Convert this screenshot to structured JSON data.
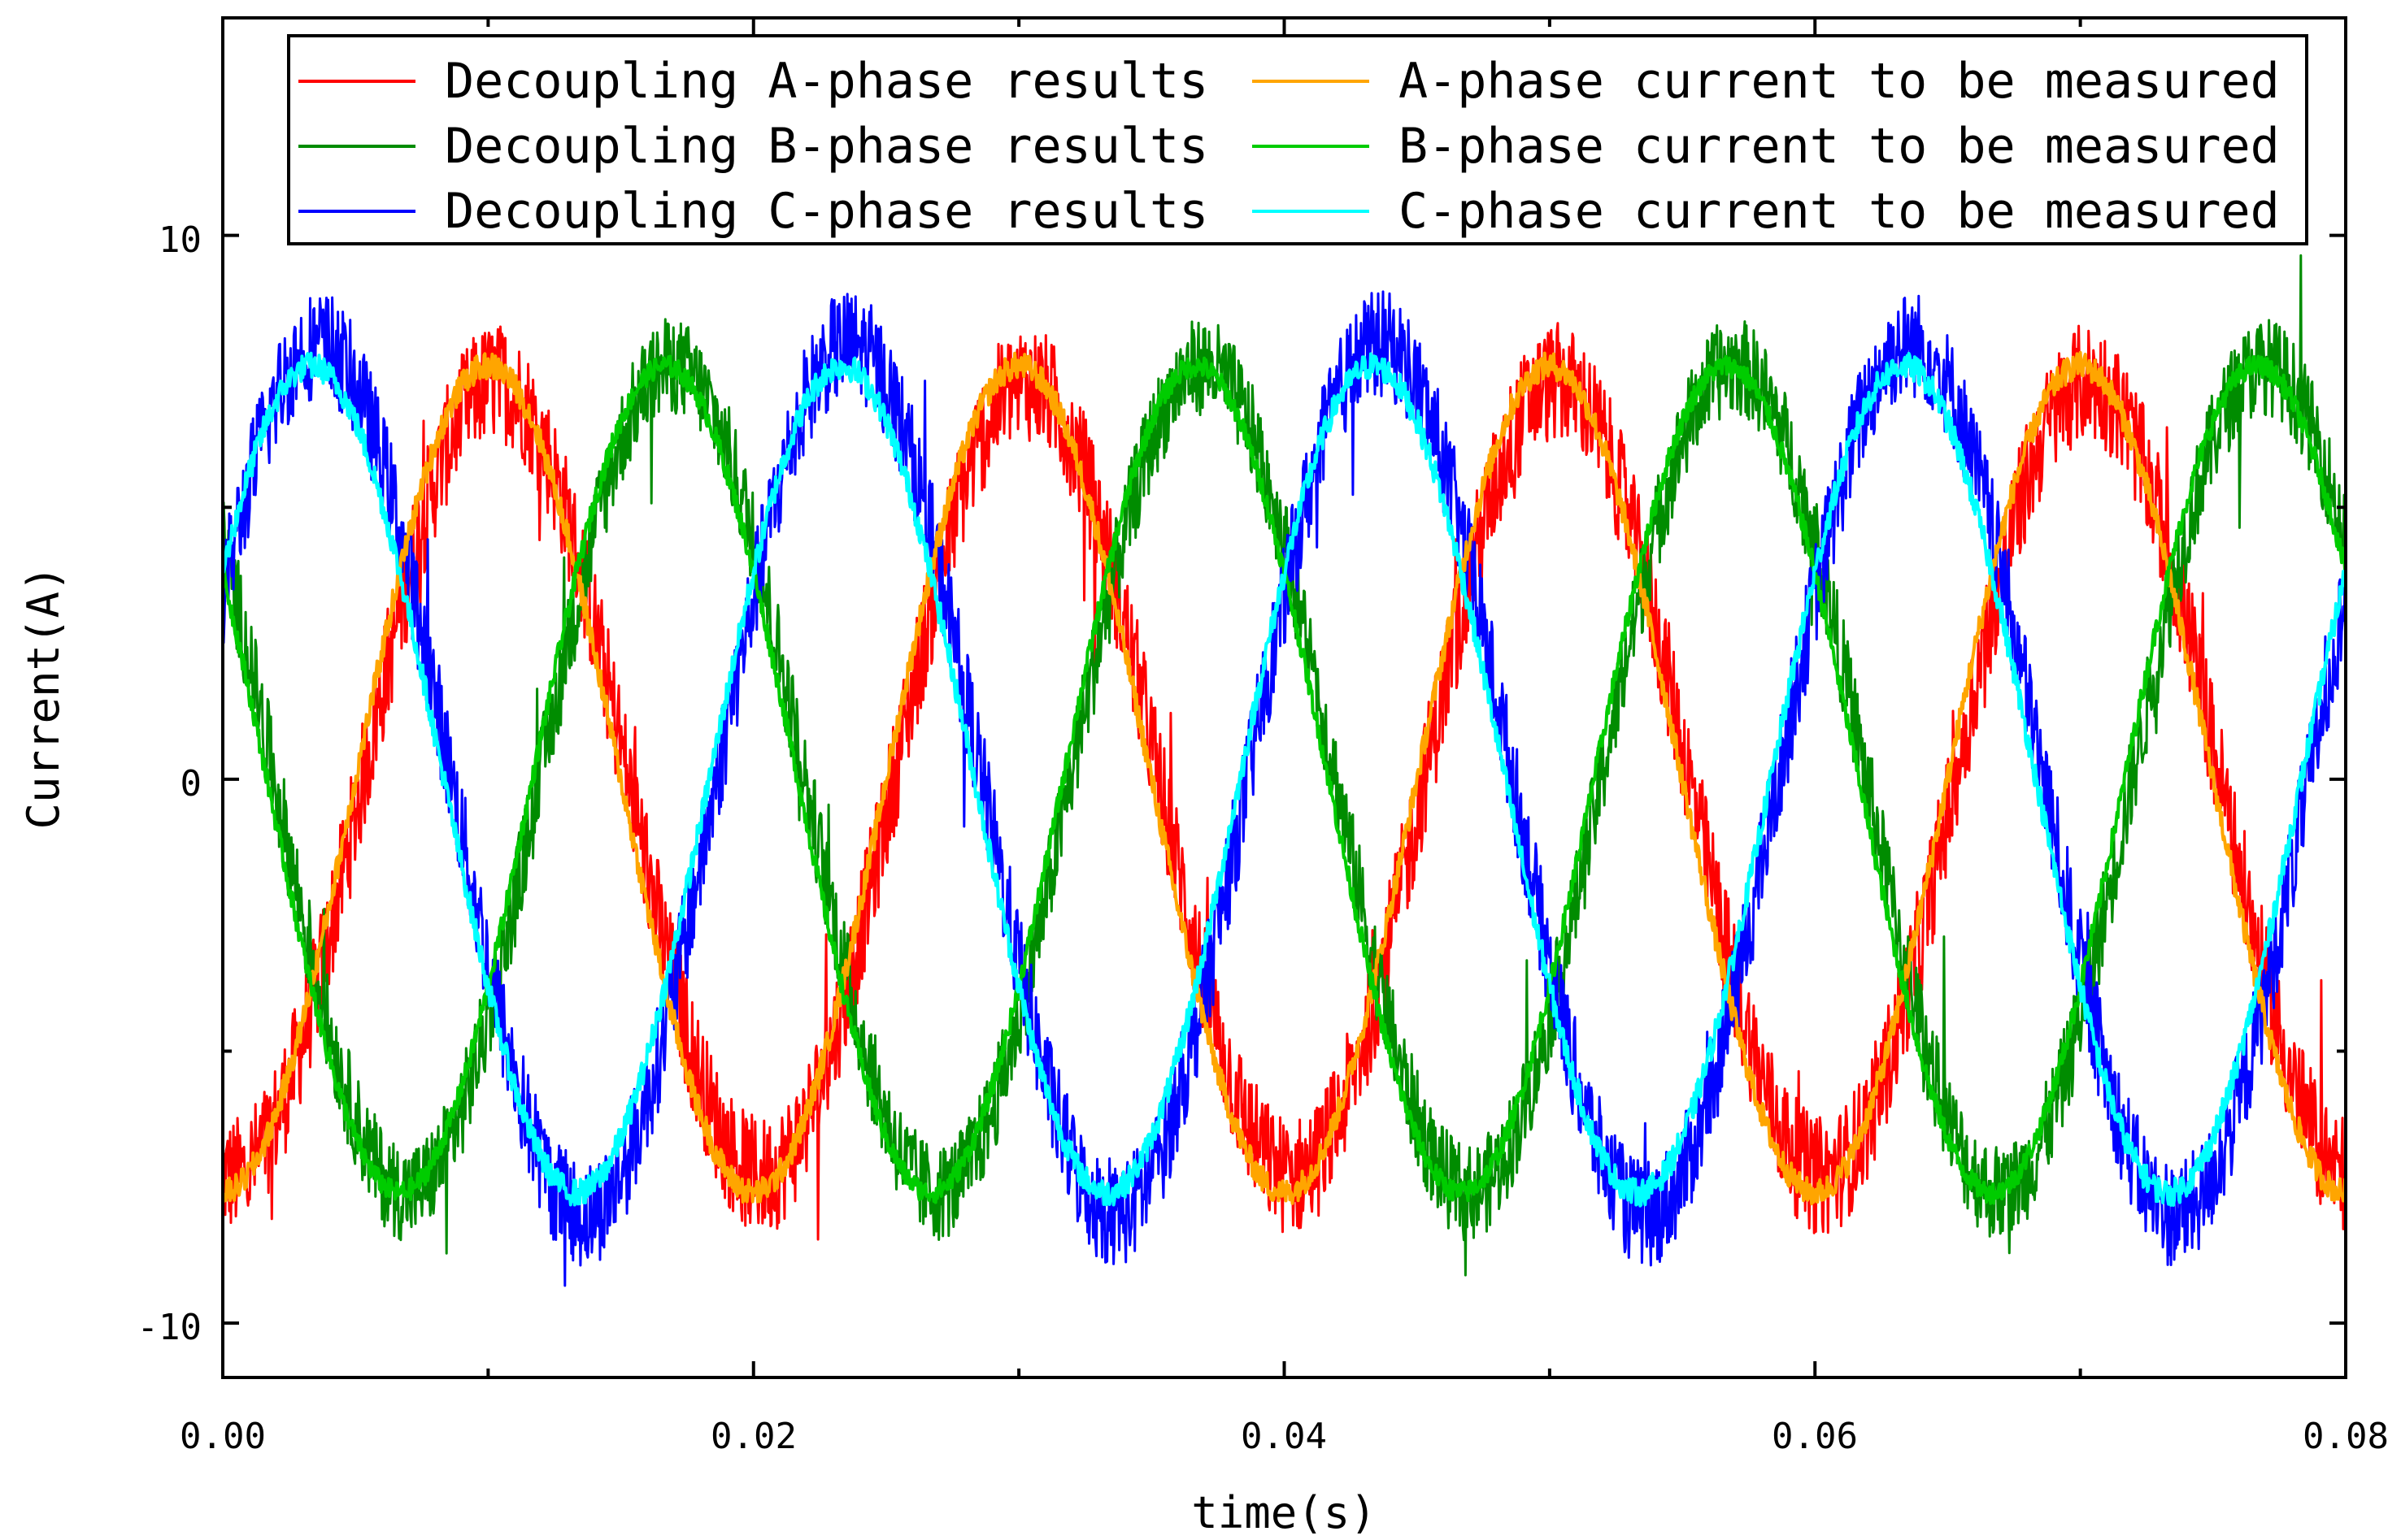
{
  "chart_data": {
    "type": "line",
    "title": "",
    "xlabel": "time(s)",
    "ylabel": "Current(A)",
    "xlim": [
      0.0,
      0.08
    ],
    "ylim": [
      -11,
      14
    ],
    "x_ticks": [
      0.0,
      0.02,
      0.04,
      0.06,
      0.08
    ],
    "x_tick_labels": [
      "0.00",
      "0.02",
      "0.04",
      "0.06",
      "0.08"
    ],
    "y_ticks": [
      -10,
      0,
      10
    ],
    "y_tick_labels": [
      "-10",
      "0",
      "10"
    ],
    "y_minor_ticks": [
      -5,
      5
    ],
    "x_minor_ticks": [
      0.01,
      0.03,
      0.05,
      0.07
    ],
    "grid": false,
    "legend_placement": "top",
    "frequency_hz": 50,
    "series": [
      {
        "name": "Decoupling A-phase results",
        "color": "#ff0000",
        "amplitude": 7.3,
        "phase_deg": -95,
        "noise": 1.1,
        "width": 3
      },
      {
        "name": "Decoupling B-phase results",
        "color": "#008c00",
        "amplitude": 7.6,
        "phase_deg": 145,
        "noise": 0.9,
        "width": 3
      },
      {
        "name": "Decoupling C-phase results",
        "color": "#0000ff",
        "amplitude": 8.0,
        "phase_deg": 25,
        "noise": 1.0,
        "width": 3
      },
      {
        "name": "A-phase current to be measured",
        "color": "#ffa500",
        "amplitude": 7.6,
        "phase_deg": -90,
        "noise": 0.25,
        "width": 4
      },
      {
        "name": "B-phase current to be measured",
        "color": "#00cc00",
        "amplitude": 7.6,
        "phase_deg": 150,
        "noise": 0.2,
        "width": 4
      },
      {
        "name": "C-phase current to be measured",
        "color": "#00ffff",
        "amplitude": 7.6,
        "phase_deg": 30,
        "noise": 0.25,
        "width": 4
      }
    ]
  }
}
